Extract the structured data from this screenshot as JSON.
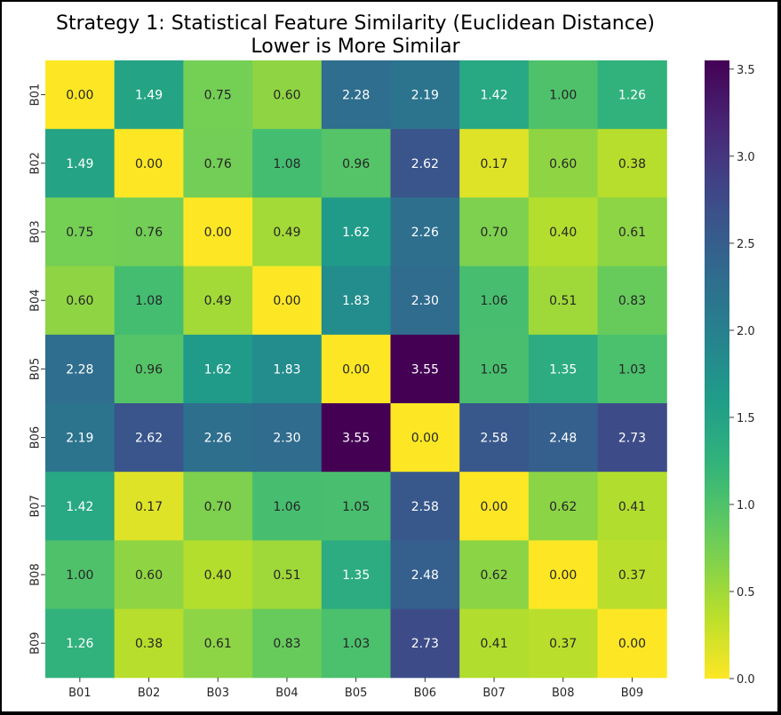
{
  "chart_data": {
    "type": "heatmap",
    "title": "Strategy 1: Statistical Feature Similarity (Euclidean Distance)",
    "subtitle": "Lower is More Similar",
    "row_labels": [
      "B01",
      "B02",
      "B03",
      "B04",
      "B05",
      "B06",
      "B07",
      "B08",
      "B09"
    ],
    "col_labels": [
      "B01",
      "B02",
      "B03",
      "B04",
      "B05",
      "B06",
      "B07",
      "B08",
      "B09"
    ],
    "values": [
      [
        0.0,
        1.49,
        0.75,
        0.6,
        2.28,
        2.19,
        1.42,
        1.0,
        1.26
      ],
      [
        1.49,
        0.0,
        0.76,
        1.08,
        0.96,
        2.62,
        0.17,
        0.6,
        0.38
      ],
      [
        0.75,
        0.76,
        0.0,
        0.49,
        1.62,
        2.26,
        0.7,
        0.4,
        0.61
      ],
      [
        0.6,
        1.08,
        0.49,
        0.0,
        1.83,
        2.3,
        1.06,
        0.51,
        0.83
      ],
      [
        2.28,
        0.96,
        1.62,
        1.83,
        0.0,
        3.55,
        1.05,
        1.35,
        1.03
      ],
      [
        2.19,
        2.62,
        2.26,
        2.3,
        3.55,
        0.0,
        2.58,
        2.48,
        2.73
      ],
      [
        1.42,
        0.17,
        0.7,
        1.06,
        1.05,
        2.58,
        0.0,
        0.62,
        0.41
      ],
      [
        1.0,
        0.6,
        0.4,
        0.51,
        1.35,
        2.48,
        0.62,
        0.0,
        0.37
      ],
      [
        1.26,
        0.38,
        0.61,
        0.83,
        1.03,
        2.73,
        0.41,
        0.37,
        0.0
      ]
    ],
    "colormap": "viridis_r",
    "vmin": 0.0,
    "vmax": 3.55,
    "colorbar_ticks": [
      "0.0",
      "0.5",
      "1.0",
      "1.5",
      "2.0",
      "2.5",
      "3.0",
      "3.5"
    ],
    "annotate": true,
    "value_format": "0.00"
  }
}
